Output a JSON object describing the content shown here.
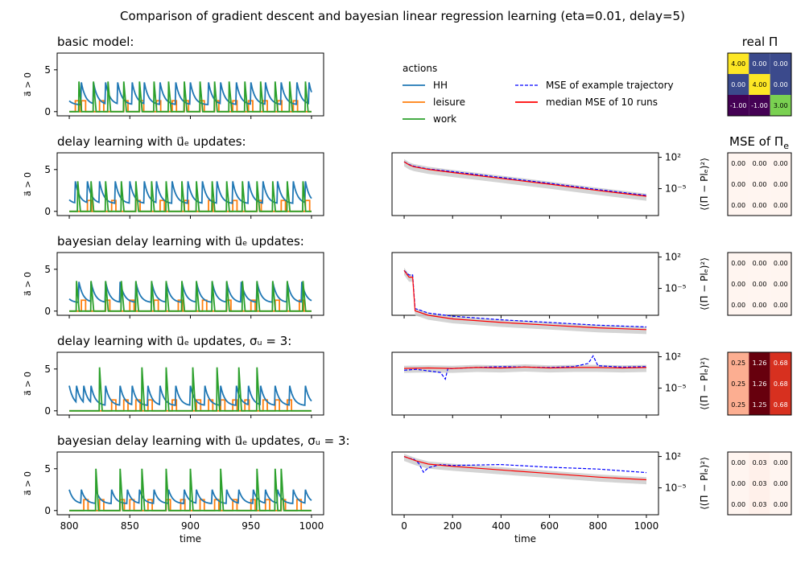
{
  "figure": {
    "title": "Comparison of gradient descent and bayesian linear regression learning (eta=0.01, delay=5)"
  },
  "legend": {
    "title": "actions",
    "entries": [
      {
        "label": "HH",
        "color": "#1f77b4",
        "style": "solid"
      },
      {
        "label": "leisure",
        "color": "#ff7f0e",
        "style": "solid"
      },
      {
        "label": "work",
        "color": "#2ca02c",
        "style": "solid"
      },
      {
        "label": "MSE of example trajectory",
        "color": "#0000ff",
        "style": "dashed"
      },
      {
        "label": "median MSE of 10 runs",
        "color": "#ff0000",
        "style": "solid"
      }
    ]
  },
  "headers": {
    "real_pi": "real Π",
    "mse_pi_e": "MSE of Π",
    "mse_pi_e_sub": "e"
  },
  "rows": [
    {
      "title": "basic model:",
      "ylabel": "a⃗ > 0",
      "mse_ylabel": ""
    },
    {
      "title": "delay learning with u⃗ₑ updates:",
      "ylabel": "a⃗ > 0",
      "mse_ylabel": "⟨(Π − Plₑ)²⟩"
    },
    {
      "title": "bayesian delay learning with u⃗ₑ updates:",
      "ylabel": "a⃗ > 0",
      "mse_ylabel": "⟨(Π − Plₑ)²⟩"
    },
    {
      "title": "delay learning with u⃗ₑ updates, σᵤ = 3:",
      "ylabel": "a⃗ > 0",
      "mse_ylabel": "⟨(Π − Plₑ)²⟩"
    },
    {
      "title": "bayesian delay learning with u⃗ₑ updates, σᵤ = 3:",
      "ylabel": "a⃗ > 0",
      "mse_ylabel": "⟨(Π − Plₑ)²⟩"
    }
  ],
  "axes_left": {
    "xlabel": "time",
    "xlim": [
      790,
      1010
    ],
    "xticks": [
      "800",
      "850",
      "900",
      "950",
      "1000"
    ],
    "ylim": [
      -0.5,
      7
    ],
    "yticks": [
      "0",
      "5"
    ]
  },
  "axes_mid": {
    "xlabel": "time",
    "xlim": [
      -50,
      1050
    ],
    "xticks": [
      "0",
      "200",
      "400",
      "600",
      "800",
      "1000"
    ],
    "yscale": "log",
    "ylim_log10": [
      -11,
      3
    ],
    "ytick_labels": [
      "10²",
      "10⁻⁵"
    ]
  },
  "chart_data": [
    {
      "type": "line",
      "title": "basic model:",
      "xlabel": "",
      "ylabel": "a⃗ > 0",
      "x_range": [
        800,
        1000
      ],
      "ylim": [
        -0.5,
        7
      ],
      "series": [
        {
          "name": "HH",
          "color": "#1f77b4",
          "peaks_x": [
            810,
            820,
            830,
            840,
            852,
            862,
            875,
            888,
            900,
            915,
            925,
            938,
            950,
            962,
            975,
            988,
            998
          ],
          "peak": 3.5,
          "base": 0.8
        },
        {
          "name": "leisure",
          "color": "#ff7f0e",
          "pulses_x": [
            805,
            810,
            825,
            845,
            858,
            872,
            885,
            895,
            908,
            920,
            935,
            948,
            960,
            972,
            985
          ],
          "level": 1.3
        },
        {
          "name": "work",
          "color": "#2ca02c",
          "spikes_x": [
            808,
            820,
            832,
            845,
            858,
            870,
            882,
            895,
            908,
            920,
            932,
            945,
            958,
            970,
            982,
            995
          ],
          "peak": 3.6
        }
      ]
    },
    {
      "type": "line",
      "title": "delay learning with u⃗ₑ updates:",
      "ylabel": "a⃗ > 0",
      "x_range": [
        800,
        1000
      ],
      "ylim": [
        -0.5,
        7
      ],
      "series": [
        {
          "name": "HH",
          "color": "#1f77b4",
          "peaks_x": [
            805,
            815,
            825,
            838,
            850,
            862,
            872,
            885,
            898,
            910,
            922,
            935,
            948,
            960,
            972,
            985,
            995
          ],
          "peak": 3.6,
          "base": 0.9
        },
        {
          "name": "leisure",
          "color": "#ff7f0e",
          "pulses_x": [
            815,
            835,
            855,
            875,
            895,
            915,
            935,
            955,
            975,
            995
          ],
          "level": 1.3
        },
        {
          "name": "work",
          "color": "#2ca02c",
          "spikes_x": [
            807,
            818,
            830,
            843,
            855,
            868,
            880,
            893,
            905,
            918,
            930,
            943,
            955,
            968,
            980,
            993
          ],
          "peak": 3.6
        }
      ]
    },
    {
      "type": "line",
      "title": "bayesian delay learning with u⃗ₑ updates:",
      "ylabel": "a⃗ > 0",
      "x_range": [
        800,
        1000
      ],
      "ylim": [
        -0.5,
        7
      ],
      "series": [
        {
          "name": "HH",
          "color": "#1f77b4",
          "peaks_x": [
            808,
            818,
            830,
            842,
            855,
            868,
            880,
            893,
            905,
            918,
            930,
            942,
            955,
            968,
            980,
            992
          ],
          "peak": 3.5,
          "base": 1.0
        },
        {
          "name": "leisure",
          "color": "#ff7f0e",
          "pulses_x": [
            810,
            830,
            850,
            870,
            890,
            910,
            930,
            950,
            970,
            990
          ],
          "level": 1.3
        },
        {
          "name": "work",
          "color": "#2ca02c",
          "spikes_x": [
            806,
            818,
            830,
            843,
            855,
            868,
            880,
            893,
            905,
            918,
            930,
            943,
            955,
            968,
            980,
            993
          ],
          "peak": 3.6
        }
      ]
    },
    {
      "type": "line",
      "title": "delay learning with u⃗ₑ updates, σᵤ = 3:",
      "ylabel": "a⃗ > 0",
      "x_range": [
        800,
        1000
      ],
      "ylim": [
        -0.5,
        7
      ],
      "series": [
        {
          "name": "HH",
          "color": "#1f77b4",
          "peaks_x": [
            800,
            806,
            812,
            818,
            830,
            842,
            852,
            865,
            875,
            888,
            900,
            912,
            925,
            938,
            948,
            958,
            970,
            982,
            995
          ],
          "peak": 3.0,
          "base": 0.6
        },
        {
          "name": "leisure",
          "color": "#ff7f0e",
          "pulses_x": [
            835,
            845,
            855,
            865,
            885,
            905,
            915,
            925,
            935,
            945,
            960,
            970,
            980
          ],
          "level": 1.3
        },
        {
          "name": "work",
          "color": "#2ca02c",
          "spikes_x": [
            825,
            860,
            880,
            902,
            922,
            940,
            955
          ],
          "peak": 5.2
        }
      ]
    },
    {
      "type": "line",
      "title": "bayesian delay learning with u⃗ₑ updates, σᵤ = 3:",
      "ylabel": "a⃗ > 0",
      "x_range": [
        800,
        1000
      ],
      "ylim": [
        -0.5,
        7
      ],
      "series": [
        {
          "name": "HH",
          "color": "#1f77b4",
          "peaks_x": [
            800,
            810,
            822,
            835,
            848,
            858,
            870,
            882,
            895,
            905,
            918,
            930,
            940,
            952,
            962,
            972,
            985,
            995
          ],
          "peak": 2.5,
          "base": 0.8
        },
        {
          "name": "leisure",
          "color": "#ff7f0e",
          "pulses_x": [
            812,
            825,
            842,
            850,
            865,
            880,
            892,
            908,
            920,
            935,
            950,
            962,
            975,
            988
          ],
          "level": 1.3
        },
        {
          "name": "work",
          "color": "#2ca02c",
          "spikes_x": [
            822,
            842,
            860,
            880,
            900,
            925,
            955,
            970,
            975
          ],
          "peak": 5.0
        }
      ]
    },
    {
      "type": "line",
      "title": "delay learning with u⃗ₑ updates: MSE",
      "xlabel": "",
      "ylabel": "⟨(Π − Plₑ)²⟩",
      "yscale": "log",
      "series": [
        {
          "name": "MSE of example trajectory",
          "x": [
            0,
            20,
            40,
            100,
            200,
            400,
            600,
            800,
            1000
          ],
          "log10_y": [
            1.0,
            0.4,
            0.0,
            -0.6,
            -1.2,
            -2.5,
            -3.8,
            -5.2,
            -6.5
          ]
        },
        {
          "name": "median MSE of 10 runs",
          "x": [
            0,
            20,
            40,
            100,
            200,
            400,
            600,
            800,
            1000
          ],
          "log10_y": [
            1.0,
            0.3,
            -0.1,
            -0.7,
            -1.4,
            -2.7,
            -4.0,
            -5.4,
            -6.7
          ]
        }
      ]
    },
    {
      "type": "line",
      "title": "bayesian delay learning with u⃗ₑ updates: MSE",
      "ylabel": "⟨(Π − Plₑ)²⟩",
      "yscale": "log",
      "series": [
        {
          "name": "MSE of example trajectory",
          "x": [
            0,
            20,
            35,
            45,
            100,
            200,
            400,
            600,
            800,
            1000
          ],
          "log10_y": [
            -1.0,
            -2.0,
            -2.0,
            -9.5,
            -10.5,
            -11.2,
            -12.0,
            -12.6,
            -13.2,
            -13.6
          ]
        },
        {
          "name": "median MSE of 10 runs",
          "x": [
            0,
            20,
            35,
            45,
            100,
            200,
            400,
            600,
            800,
            1000
          ],
          "log10_y": [
            -1.0,
            -2.5,
            -2.5,
            -10.0,
            -11.0,
            -11.8,
            -12.6,
            -13.2,
            -13.8,
            -14.2
          ]
        }
      ]
    },
    {
      "type": "line",
      "title": "delay learning with u⃗ₑ updates, σᵤ = 3: MSE",
      "ylabel": "⟨(Π − Plₑ)²⟩",
      "yscale": "log",
      "series": [
        {
          "name": "MSE of example trajectory",
          "x": [
            0,
            50,
            150,
            170,
            180,
            200,
            300,
            400,
            500,
            600,
            700,
            760,
            780,
            800,
            900,
            1000
          ],
          "log10_y": [
            -1.0,
            -0.8,
            -1.5,
            -3.0,
            -0.7,
            -0.6,
            -0.4,
            -0.2,
            -0.3,
            -0.4,
            -0.2,
            0.5,
            2.2,
            0.0,
            -0.3,
            -0.2
          ]
        },
        {
          "name": "median MSE of 10 runs",
          "x": [
            0,
            100,
            200,
            300,
            400,
            500,
            600,
            700,
            800,
            900,
            1000
          ],
          "log10_y": [
            -0.6,
            -0.5,
            -0.6,
            -0.4,
            -0.5,
            -0.3,
            -0.5,
            -0.4,
            -0.4,
            -0.5,
            -0.4
          ]
        }
      ]
    },
    {
      "type": "line",
      "title": "bayesian delay learning with u⃗ₑ updates, σᵤ = 3: MSE",
      "ylabel": "⟨(Π − Plₑ)²⟩",
      "yscale": "log",
      "series": [
        {
          "name": "MSE of example trajectory",
          "x": [
            0,
            20,
            40,
            60,
            80,
            100,
            150,
            200,
            400,
            600,
            800,
            1000
          ],
          "log10_y": [
            2.0,
            1.6,
            1.4,
            0.5,
            -1.5,
            -0.5,
            0.2,
            0.0,
            0.2,
            -0.4,
            -0.8,
            -1.6
          ]
        },
        {
          "name": "median MSE of 10 runs",
          "x": [
            0,
            50,
            100,
            200,
            400,
            600,
            800,
            1000
          ],
          "log10_y": [
            2.0,
            1.0,
            0.3,
            -0.2,
            -1.0,
            -1.8,
            -2.6,
            -3.2
          ]
        }
      ]
    },
    {
      "type": "heatmap",
      "title": "real Π",
      "values": [
        [
          "4.00",
          "0.00",
          "0.00"
        ],
        [
          "0.00",
          "4.00",
          "0.00"
        ],
        [
          "-1.00",
          "-1.00",
          "3.00"
        ]
      ],
      "colors": [
        [
          "#fde725",
          "#3b4a8c",
          "#3b4a8c"
        ],
        [
          "#3b4a8c",
          "#fde725",
          "#3b4a8c"
        ],
        [
          "#440154",
          "#440154",
          "#7ad151"
        ]
      ]
    },
    {
      "type": "heatmap",
      "title": "MSE of Πₑ — delay learning",
      "values": [
        [
          "0.00",
          "0.00",
          "0.00"
        ],
        [
          "0.00",
          "0.00",
          "0.00"
        ],
        [
          "0.00",
          "0.00",
          "0.00"
        ]
      ],
      "colors": [
        [
          "#fff5f0",
          "#fff5f0",
          "#fff5f0"
        ],
        [
          "#fff5f0",
          "#fff5f0",
          "#fff5f0"
        ],
        [
          "#fff5f0",
          "#fff5f0",
          "#fff5f0"
        ]
      ]
    },
    {
      "type": "heatmap",
      "title": "MSE of Πₑ — bayesian delay learning",
      "values": [
        [
          "0.00",
          "0.00",
          "0.00"
        ],
        [
          "0.00",
          "0.00",
          "0.00"
        ],
        [
          "0.00",
          "0.00",
          "0.00"
        ]
      ],
      "colors": [
        [
          "#fff5f0",
          "#fff5f0",
          "#fff5f0"
        ],
        [
          "#fff5f0",
          "#fff5f0",
          "#fff5f0"
        ],
        [
          "#fff5f0",
          "#fff5f0",
          "#fff5f0"
        ]
      ]
    },
    {
      "type": "heatmap",
      "title": "MSE of Πₑ — delay learning σᵤ=3",
      "values": [
        [
          "0.25",
          "1.26",
          "0.68"
        ],
        [
          "0.25",
          "1.26",
          "0.68"
        ],
        [
          "0.25",
          "1.25",
          "0.68"
        ]
      ],
      "colors": [
        [
          "#fcae91",
          "#67000d",
          "#d7301f"
        ],
        [
          "#fcae91",
          "#67000d",
          "#d7301f"
        ],
        [
          "#fcae91",
          "#67000d",
          "#d7301f"
        ]
      ]
    },
    {
      "type": "heatmap",
      "title": "MSE of Πₑ — bayesian delay learning σᵤ=3",
      "values": [
        [
          "0.00",
          "0.03",
          "0.00"
        ],
        [
          "0.00",
          "0.03",
          "0.00"
        ],
        [
          "0.00",
          "0.03",
          "0.00"
        ]
      ],
      "colors": [
        [
          "#fff5f0",
          "#fff0ea",
          "#fff5f0"
        ],
        [
          "#fff5f0",
          "#fff0ea",
          "#fff5f0"
        ],
        [
          "#fff5f0",
          "#fff0ea",
          "#fff5f0"
        ]
      ]
    }
  ]
}
